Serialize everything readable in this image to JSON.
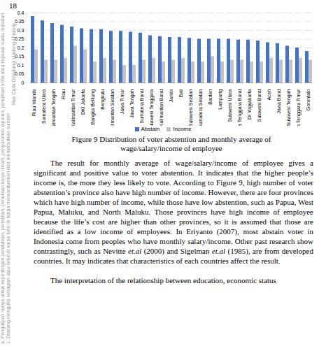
{
  "page_number": "18",
  "side_notice": [
    "Hak Cipta Dilindungi Undang-Undang",
    "1. Dilarang mengutip sebagian atau seluruh karya tulis ini tanpa mencantumkan dan menyebutkan sumber:",
    "a. Pengutipan hanya untuk kepentingan pendidikan, penelitian, penulisan karya ilmiah, penyusunan laporan, penulisan kritik atau tinjauan suatu masalah"
  ],
  "chart_data": {
    "type": "bar",
    "categories": [
      "Riau Islands",
      "Sumatera Utara",
      "Kalimantan Tengah",
      "Riau",
      "Kalimantan Timur",
      "DKI Jakarta",
      "Bangka Belitung",
      "Bengkulu",
      "Kalimantan Selatan",
      "Jawa Timur",
      "Jawa Tengah",
      "Sumatera Barat",
      "Sulawesi Tenggara",
      "Kalimantan Barat",
      "Jambi",
      "Bali",
      "Sulawesi Selatan",
      "Sumatera Selatan",
      "Banten",
      "Lampung",
      "Sulawesi Utara",
      "Nusa Tenggara Barat",
      "DI Yogyakarta",
      "Sulawesi Barat",
      "Aceh",
      "Jawa Barat",
      "Sulawesi Tengah",
      "Nusa Tenggara Timur",
      "Gorontalo"
    ],
    "series": [
      {
        "name": "Abstain",
        "color": "#4472c4",
        "values": [
          0.38,
          0.355,
          0.34,
          0.33,
          0.32,
          0.31,
          0.305,
          0.305,
          0.295,
          0.295,
          0.29,
          0.285,
          0.27,
          0.265,
          0.26,
          0.26,
          0.255,
          0.25,
          0.25,
          0.25,
          0.25,
          0.245,
          0.245,
          0.24,
          0.23,
          0.225,
          0.21,
          0.2,
          0.18
        ]
      },
      {
        "name": "Income",
        "color": "#c3c3c3",
        "values": [
          0.19,
          0.13,
          0.13,
          0.14,
          0.21,
          0.19,
          0.12,
          0.14,
          0.13,
          0.1,
          0.1,
          0.13,
          0.14,
          0.12,
          0.13,
          0.14,
          0.12,
          0.12,
          0.15,
          0.12,
          0.13,
          0.13,
          0.12,
          0.12,
          0.14,
          0.13,
          0.13,
          0.14,
          0.13
        ]
      }
    ],
    "ylim": [
      0,
      0.4
    ],
    "yticks": [
      0,
      0.05,
      0.1,
      0.15,
      0.2,
      0.25,
      0.3,
      0.35,
      0.4
    ],
    "grid": true,
    "legend": "bottom"
  },
  "caption": [
    "Figure 9 Distribution of voter abstention and monthly average of",
    "wage/salary/income of employee"
  ],
  "paragraphs": [
    [
      {
        "text": "The result for monthly average of wage/salary/income of employee gives a significant and positive value to voter abstention. It indicates that the higher people’s income is, the more they less likely to vote. According to Figure 9, high number of voter abstention’s province also have high number of income. However, there are four provinces which have high number of income, while those have low abstention, such as Papua, West Papua, Maluku, and North Maluku. Those provinces have high income of employee because the life’s cost are higher than other provinces, so it is assumed that those are identified as a low income of employees. In Eriyanto (2007), most abstain voter in Indonesia come from peoples who have monthly salary/income. Other past research show contrastingly, such as Nevitte ",
        "italic": false
      },
      {
        "text": "et.al",
        "italic": true
      },
      {
        "text": " (2000) and Sigelman ",
        "italic": false
      },
      {
        "text": "et.al",
        "italic": true
      },
      {
        "text": " (1985), are from developed countries. It may indicates that characteristics of each countries affect the result.",
        "italic": false
      }
    ],
    [
      {
        "text": "The interpretation of the relationship between education, economic status",
        "italic": false
      }
    ]
  ]
}
